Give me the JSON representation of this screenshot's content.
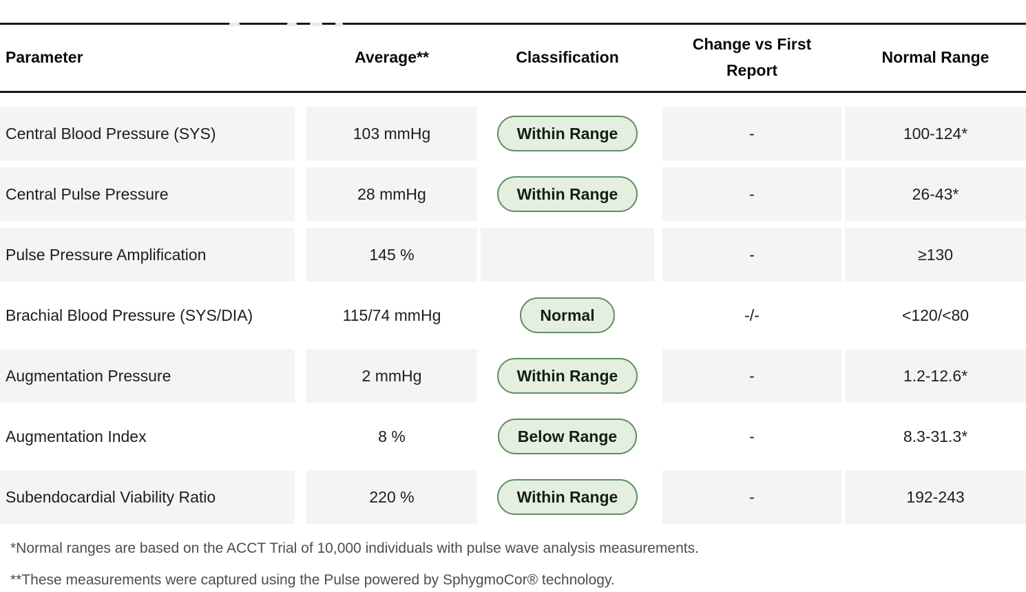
{
  "colors": {
    "page_background": "#ffffff",
    "row_background": "#f4f4f2",
    "header_border": "#161616",
    "badge_background": "#e4efe0",
    "badge_border": "#5f8c63",
    "badge_text": "#14200f",
    "footnote_text": "#4d4d4d"
  },
  "table": {
    "columns": [
      {
        "key": "parameter",
        "label": "Parameter"
      },
      {
        "key": "average",
        "label": "Average**"
      },
      {
        "key": "classification",
        "label": "Classification"
      },
      {
        "key": "change",
        "label": "Change vs First Report"
      },
      {
        "key": "normal_range",
        "label": "Normal Range"
      }
    ],
    "rows": [
      {
        "parameter": "Central Blood Pressure (SYS)",
        "average": "103 mmHg",
        "classification": "Within Range",
        "change": "-",
        "normal_range": "100-124*",
        "row_bg": "gray"
      },
      {
        "parameter": "Central Pulse Pressure",
        "average": "28 mmHg",
        "classification": "Within Range",
        "change": "-",
        "normal_range": "26-43*",
        "row_bg": "gray"
      },
      {
        "parameter": "Pulse Pressure Amplification",
        "average": "145 %",
        "classification": "",
        "change": "-",
        "normal_range": "≥130",
        "row_bg": "gray"
      },
      {
        "parameter": "Brachial Blood Pressure (SYS/DIA)",
        "average": "115/74 mmHg",
        "classification": "Normal",
        "change": "-/-",
        "normal_range": "<120/<80",
        "row_bg": "white"
      },
      {
        "parameter": "Augmentation Pressure",
        "average": "2 mmHg",
        "classification": "Within Range",
        "change": "-",
        "normal_range": "1.2-12.6*",
        "row_bg": "gray"
      },
      {
        "parameter": "Augmentation Index",
        "average": "8 %",
        "classification": "Below Range",
        "change": "-",
        "normal_range": "8.3-31.3*",
        "row_bg": "white"
      },
      {
        "parameter": "Subendocardial Viability Ratio",
        "average": "220 %",
        "classification": "Within Range",
        "change": "-",
        "normal_range": "192-243",
        "row_bg": "gray"
      }
    ]
  },
  "footnotes": [
    "*Normal ranges are based on the ACCT Trial of 10,000 individuals with pulse wave analysis measurements.",
    "**These measurements were captured using the Pulse powered by SphygmoCor® technology."
  ]
}
